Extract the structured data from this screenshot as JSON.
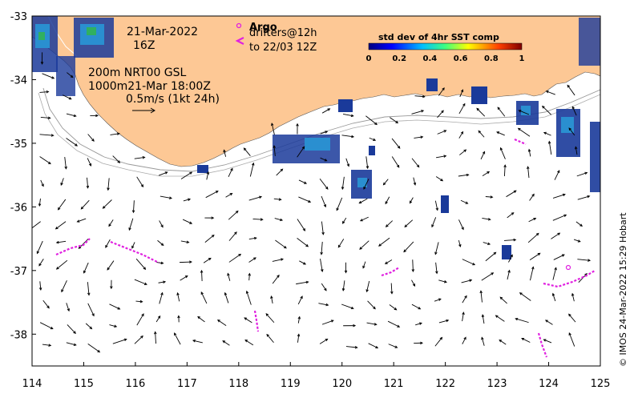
{
  "date_line": "21-Mar-2022",
  "time_line": "16Z",
  "product_line1": "200m  NRT00 GSL",
  "product_line2": "1000m21-Mar 18:00Z",
  "scale_label": "0.5m/s (1kt 24h)",
  "legend": {
    "argo_label": "Argo",
    "drifters_line1": "drifters@12h",
    "drifters_line2": "to 22/03 12Z"
  },
  "colorbar": {
    "title": "std dev of 4hr SST comp",
    "ticks": [
      "0",
      "0.2",
      "0.4",
      "0.6",
      "0.8",
      "1"
    ]
  },
  "credit": "© IMOS 24-Mar-2022 15:29 Hobart",
  "axes": {
    "x_ticks": [
      "114",
      "115",
      "116",
      "117",
      "118",
      "119",
      "120",
      "121",
      "122",
      "123",
      "124",
      "125"
    ],
    "y_ticks": [
      "-33",
      "-34",
      "-35",
      "-36",
      "-37",
      "-38"
    ],
    "lon_range": [
      114,
      125
    ],
    "lat_range": [
      -38.5,
      -33
    ]
  },
  "colors": {
    "land": "#fdc895",
    "drifter": "#e020e0",
    "sst_blue": "#1a3a9a",
    "sst_mid": "#2a8fd0",
    "sst_green": "#30b060"
  }
}
